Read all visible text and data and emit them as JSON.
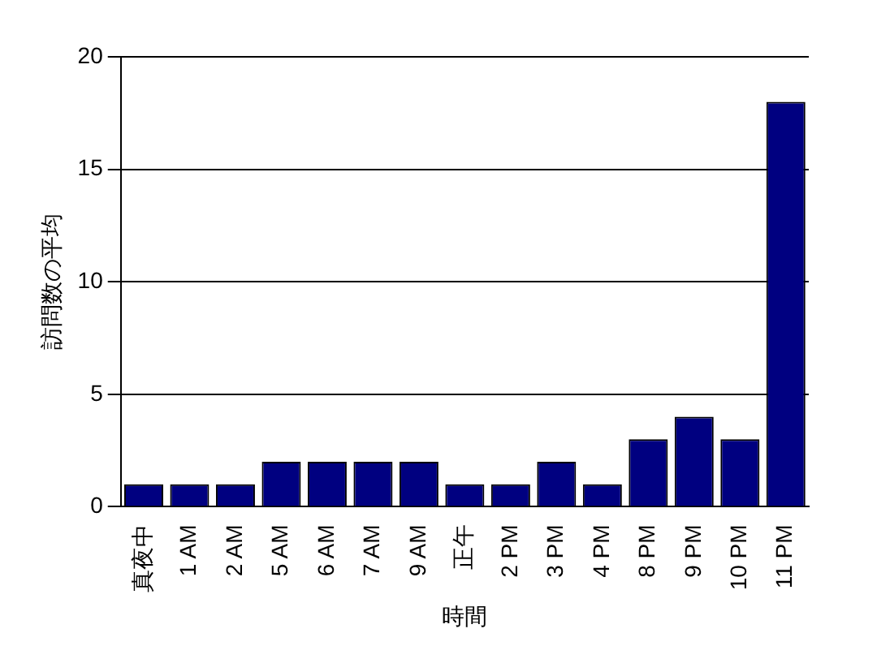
{
  "chart_data": {
    "type": "bar",
    "categories": [
      "真夜中",
      "1 AM",
      "2 AM",
      "5 AM",
      "6 AM",
      "7 AM",
      "9 AM",
      "正午",
      "2 PM",
      "3 PM",
      "4 PM",
      "8 PM",
      "9 PM",
      "10 PM",
      "11 PM"
    ],
    "values": [
      1,
      1,
      1,
      2,
      2,
      2,
      2,
      1,
      1,
      2,
      1,
      3,
      4,
      3,
      18
    ],
    "color": "#000080",
    "xlabel": "時間",
    "ylabel": "訪問数の平均",
    "ylim": [
      0,
      20
    ],
    "yticks": [
      0,
      5,
      10,
      15,
      20
    ],
    "grid": "y",
    "legend": false
  }
}
